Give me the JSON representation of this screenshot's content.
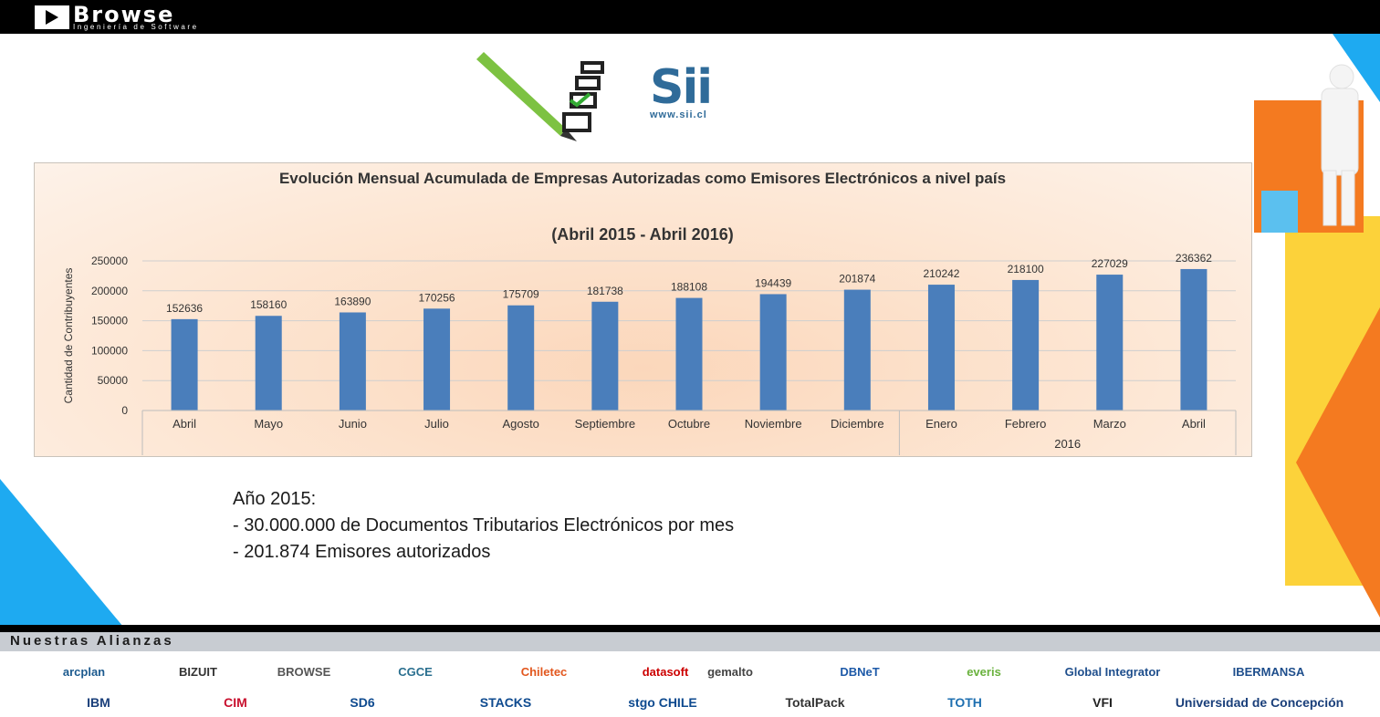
{
  "header": {
    "logo_name": "Browse",
    "logo_tagline": "Ingeniería de Software"
  },
  "sii_logo": {
    "mark": "Sii",
    "url": "www.sii.cl"
  },
  "chart_data": {
    "type": "bar",
    "title": "Evolución Mensual Acumulada de Empresas Autorizadas como Emisores Electrónicos a nivel país",
    "subtitle": "(Abril 2015 - Abril 2016)",
    "ylabel": "Cantidad de Contribuyentes",
    "xlabel": "",
    "ylim": [
      0,
      250000
    ],
    "yticks": [
      "0",
      "50000",
      "100000",
      "150000",
      "200000",
      "250000"
    ],
    "categories": [
      "Abril",
      "Mayo",
      "Junio",
      "Julio",
      "Agosto",
      "Septiembre",
      "Octubre",
      "Noviembre",
      "Diciembre",
      "Enero",
      "Febrero",
      "Marzo",
      "Abril"
    ],
    "values": [
      152636,
      158160,
      163890,
      170256,
      175709,
      181738,
      188108,
      194439,
      201874,
      210242,
      218100,
      227029,
      236362
    ],
    "group_labels": [
      {
        "label": "",
        "from": 0,
        "to": 8
      },
      {
        "label": "2016",
        "from": 9,
        "to": 12
      }
    ],
    "bar_color": "#4a7ebb",
    "grid": true,
    "legend": "none"
  },
  "notes": {
    "line1": "Año 2015:",
    "line2": "- 30.000.000 de Documentos Tributarios Electrónicos por mes",
    "line3": "- 201.874 Emisores autorizados"
  },
  "footer": {
    "title": "Nuestras Alianzas",
    "partners_row1": [
      "arcplan",
      "BIZUIT",
      "BROWSE",
      "CGCE",
      "Chiletec",
      "datasoft",
      "gemalto",
      "DBNeT",
      "everis",
      "Global Integrator",
      "IBERMANSA"
    ],
    "partners_row2": [
      "IBM",
      "CIM",
      "SD6",
      "STACKS",
      "stgo CHILE",
      "TotalPack",
      "TOTH",
      "VFI",
      "Universidad de Concepción"
    ]
  },
  "colors": {
    "accent_orange": "#f47a20",
    "accent_blue": "#1eaaf1",
    "accent_yellow": "#fcd23a"
  }
}
